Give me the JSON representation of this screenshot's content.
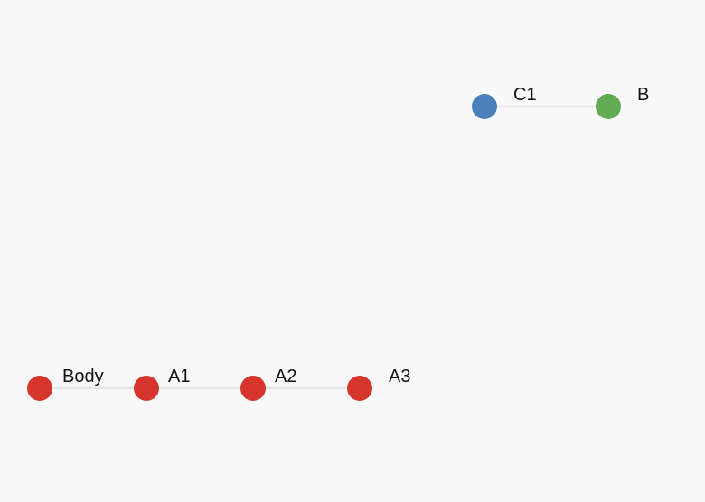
{
  "graph": {
    "nodes": [
      {
        "id": "body",
        "label": "Body",
        "color": "#d6352c"
      },
      {
        "id": "a1",
        "label": "A1",
        "color": "#d6352c"
      },
      {
        "id": "a2",
        "label": "A2",
        "color": "#d6352c"
      },
      {
        "id": "a3",
        "label": "A3",
        "color": "#d6352c"
      },
      {
        "id": "c1",
        "label": "C1",
        "color": "#4a7fba"
      },
      {
        "id": "b",
        "label": "B",
        "color": "#62aa53"
      }
    ],
    "edges": [
      {
        "from": "body",
        "to": "a1"
      },
      {
        "from": "a1",
        "to": "a2"
      },
      {
        "from": "a2",
        "to": "a3"
      },
      {
        "from": "c1",
        "to": "b"
      }
    ]
  }
}
